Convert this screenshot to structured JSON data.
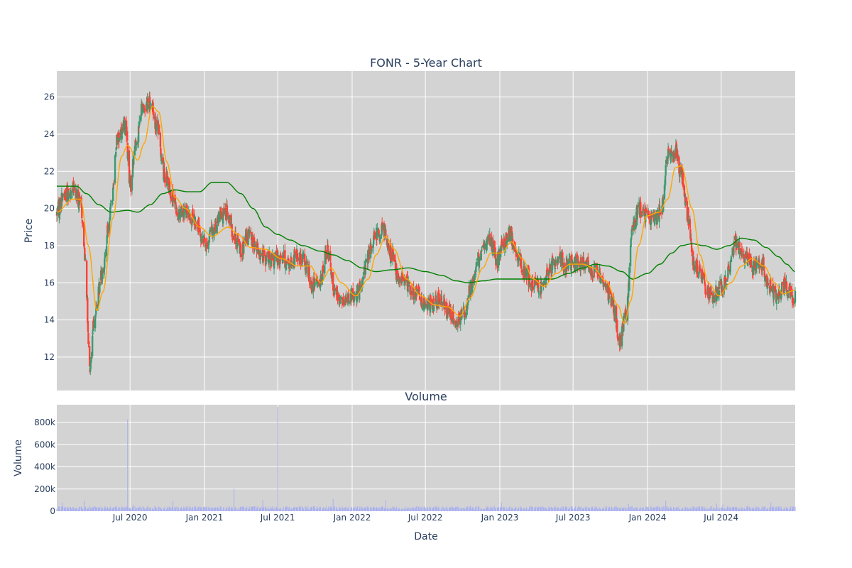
{
  "title": "FONR - 5-Year Chart",
  "colors": {
    "background": "#ffffff",
    "plot_bg": "#d3d3d3",
    "grid": "#ffffff",
    "text": "#2a3f5f",
    "increasing": "#3d9970",
    "decreasing": "#ff4136",
    "ma_short": "#ffa500",
    "ma_long": "#008000",
    "volume": "#aab0f0"
  },
  "chart_data": [
    {
      "type": "candlestick",
      "title": "FONR - 5-Year Chart",
      "ylabel": "Price",
      "xlim": [
        "2020-01-02",
        "2024-12-31"
      ],
      "ylim": [
        10.2,
        27.4
      ],
      "yticks": [
        12,
        14,
        16,
        18,
        20,
        22,
        24,
        26
      ],
      "grid": true,
      "price_path": [
        [
          "2020-01-02",
          19.8
        ],
        [
          "2020-01-20",
          20.8
        ],
        [
          "2020-02-10",
          21.0
        ],
        [
          "2020-03-01",
          20.3
        ],
        [
          "2020-03-12",
          17.5
        ],
        [
          "2020-03-23",
          11.3
        ],
        [
          "2020-04-05",
          14.3
        ],
        [
          "2020-04-25",
          16.8
        ],
        [
          "2020-05-15",
          20.0
        ],
        [
          "2020-05-30",
          23.8
        ],
        [
          "2020-06-20",
          24.5
        ],
        [
          "2020-07-01",
          21.2
        ],
        [
          "2020-07-15",
          23.5
        ],
        [
          "2020-08-01",
          25.4
        ],
        [
          "2020-08-20",
          25.8
        ],
        [
          "2020-09-05",
          24.5
        ],
        [
          "2020-09-25",
          21.8
        ],
        [
          "2020-10-10",
          20.8
        ],
        [
          "2020-10-30",
          19.6
        ],
        [
          "2020-11-20",
          19.8
        ],
        [
          "2020-12-15",
          19.0
        ],
        [
          "2021-01-05",
          18.0
        ],
        [
          "2021-01-20",
          18.8
        ],
        [
          "2021-02-10",
          19.6
        ],
        [
          "2021-02-25",
          19.8
        ],
        [
          "2021-03-15",
          18.4
        ],
        [
          "2021-04-05",
          17.8
        ],
        [
          "2021-04-20",
          18.6
        ],
        [
          "2021-05-10",
          17.8
        ],
        [
          "2021-06-01",
          17.3
        ],
        [
          "2021-06-20",
          17.2
        ],
        [
          "2021-07-10",
          17.4
        ],
        [
          "2021-08-01",
          17.0
        ],
        [
          "2021-08-20",
          17.5
        ],
        [
          "2021-09-10",
          17.0
        ],
        [
          "2021-09-25",
          15.8
        ],
        [
          "2021-10-15",
          16.2
        ],
        [
          "2021-11-01",
          17.8
        ],
        [
          "2021-11-20",
          15.5
        ],
        [
          "2021-12-10",
          15.0
        ],
        [
          "2021-12-30",
          15.3
        ],
        [
          "2022-01-20",
          15.5
        ],
        [
          "2022-02-10",
          17.5
        ],
        [
          "2022-03-01",
          18.6
        ],
        [
          "2022-03-20",
          18.8
        ],
        [
          "2022-04-10",
          17.5
        ],
        [
          "2022-04-25",
          16.2
        ],
        [
          "2022-05-15",
          16.0
        ],
        [
          "2022-06-05",
          15.5
        ],
        [
          "2022-06-25",
          15.0
        ],
        [
          "2022-07-15",
          14.8
        ],
        [
          "2022-08-05",
          15.0
        ],
        [
          "2022-08-25",
          14.5
        ],
        [
          "2022-09-15",
          14.0
        ],
        [
          "2022-10-05",
          14.5
        ],
        [
          "2022-10-25",
          16.0
        ],
        [
          "2022-11-15",
          17.5
        ],
        [
          "2022-12-05",
          18.4
        ],
        [
          "2022-12-25",
          17.2
        ],
        [
          "2023-01-10",
          18.2
        ],
        [
          "2023-01-25",
          18.6
        ],
        [
          "2023-02-15",
          17.5
        ],
        [
          "2023-03-05",
          16.5
        ],
        [
          "2023-03-25",
          15.8
        ],
        [
          "2023-04-15",
          15.8
        ],
        [
          "2023-05-05",
          16.8
        ],
        [
          "2023-05-25",
          17.4
        ],
        [
          "2023-06-15",
          17.0
        ],
        [
          "2023-07-10",
          17.1
        ],
        [
          "2023-08-01",
          17.0
        ],
        [
          "2023-08-25",
          16.6
        ],
        [
          "2023-09-15",
          16.0
        ],
        [
          "2023-10-05",
          15.0
        ],
        [
          "2023-10-25",
          13.0
        ],
        [
          "2023-11-10",
          14.5
        ],
        [
          "2023-11-25",
          19.0
        ],
        [
          "2023-12-10",
          20.0
        ],
        [
          "2023-12-30",
          19.5
        ],
        [
          "2024-01-20",
          19.5
        ],
        [
          "2024-02-05",
          20.0
        ],
        [
          "2024-02-20",
          22.8
        ],
        [
          "2024-03-10",
          23.0
        ],
        [
          "2024-03-25",
          21.8
        ],
        [
          "2024-04-10",
          19.5
        ],
        [
          "2024-04-25",
          17.0
        ],
        [
          "2024-05-10",
          16.5
        ],
        [
          "2024-05-25",
          15.5
        ],
        [
          "2024-06-10",
          15.2
        ],
        [
          "2024-06-30",
          15.8
        ],
        [
          "2024-07-20",
          16.5
        ],
        [
          "2024-08-05",
          18.2
        ],
        [
          "2024-08-25",
          17.5
        ],
        [
          "2024-09-15",
          16.8
        ],
        [
          "2024-10-05",
          17.2
        ],
        [
          "2024-10-25",
          16.0
        ],
        [
          "2024-11-15",
          15.2
        ],
        [
          "2024-12-05",
          15.8
        ],
        [
          "2024-12-31",
          15.2
        ]
      ],
      "ma_short": [
        [
          "2020-01-02",
          19.8
        ],
        [
          "2020-02-10",
          20.5
        ],
        [
          "2020-03-01",
          20.5
        ],
        [
          "2020-03-20",
          18.0
        ],
        [
          "2020-04-10",
          14.5
        ],
        [
          "2020-04-25",
          15.5
        ],
        [
          "2020-05-20",
          19.5
        ],
        [
          "2020-06-10",
          22.8
        ],
        [
          "2020-06-25",
          23.4
        ],
        [
          "2020-07-20",
          22.6
        ],
        [
          "2020-08-05",
          23.5
        ],
        [
          "2020-08-25",
          25.5
        ],
        [
          "2020-09-10",
          25.2
        ],
        [
          "2020-09-30",
          22.5
        ],
        [
          "2020-10-20",
          20.6
        ],
        [
          "2020-11-15",
          20.0
        ],
        [
          "2020-12-20",
          19.0
        ],
        [
          "2021-01-20",
          18.5
        ],
        [
          "2021-03-01",
          19.0
        ],
        [
          "2021-03-25",
          18.6
        ],
        [
          "2021-04-25",
          17.9
        ],
        [
          "2021-06-01",
          17.8
        ],
        [
          "2021-07-10",
          17.3
        ],
        [
          "2021-08-20",
          16.9
        ],
        [
          "2021-09-20",
          16.9
        ],
        [
          "2021-10-15",
          16.0
        ],
        [
          "2021-11-10",
          16.8
        ],
        [
          "2021-12-05",
          16.0
        ],
        [
          "2022-01-10",
          15.3
        ],
        [
          "2022-02-10",
          16.2
        ],
        [
          "2022-03-01",
          17.5
        ],
        [
          "2022-03-25",
          18.5
        ],
        [
          "2022-04-15",
          17.8
        ],
        [
          "2022-05-15",
          16.2
        ],
        [
          "2022-06-20",
          15.3
        ],
        [
          "2022-07-25",
          14.8
        ],
        [
          "2022-08-25",
          14.7
        ],
        [
          "2022-09-25",
          14.2
        ],
        [
          "2022-10-20",
          15.2
        ],
        [
          "2022-11-20",
          16.8
        ],
        [
          "2022-12-10",
          17.6
        ],
        [
          "2023-01-05",
          17.6
        ],
        [
          "2023-01-30",
          18.2
        ],
        [
          "2023-02-25",
          17.3
        ],
        [
          "2023-03-25",
          16.2
        ],
        [
          "2023-04-20",
          15.8
        ],
        [
          "2023-05-20",
          16.5
        ],
        [
          "2023-06-25",
          17.0
        ],
        [
          "2023-07-25",
          17.0
        ],
        [
          "2023-08-20",
          16.8
        ],
        [
          "2023-09-20",
          16.1
        ],
        [
          "2023-10-20",
          14.8
        ],
        [
          "2023-11-05",
          13.8
        ],
        [
          "2023-11-20",
          15.0
        ],
        [
          "2023-12-10",
          18.0
        ],
        [
          "2023-12-30",
          19.6
        ],
        [
          "2024-01-30",
          19.8
        ],
        [
          "2024-02-20",
          20.5
        ],
        [
          "2024-03-10",
          22.2
        ],
        [
          "2024-03-25",
          22.3
        ],
        [
          "2024-04-20",
          20.0
        ],
        [
          "2024-05-10",
          17.5
        ],
        [
          "2024-05-30",
          16.0
        ],
        [
          "2024-06-25",
          15.3
        ],
        [
          "2024-07-25",
          16.0
        ],
        [
          "2024-08-20",
          16.9
        ],
        [
          "2024-09-15",
          17.3
        ],
        [
          "2024-10-15",
          16.9
        ],
        [
          "2024-11-10",
          16.0
        ],
        [
          "2024-12-01",
          15.4
        ],
        [
          "2024-12-31",
          15.6
        ]
      ],
      "ma_long": [
        [
          "2020-01-02",
          21.2
        ],
        [
          "2020-02-20",
          21.2
        ],
        [
          "2020-03-15",
          20.8
        ],
        [
          "2020-04-15",
          20.2
        ],
        [
          "2020-05-15",
          19.8
        ],
        [
          "2020-06-25",
          19.9
        ],
        [
          "2020-07-20",
          19.8
        ],
        [
          "2020-08-20",
          20.2
        ],
        [
          "2020-09-20",
          20.8
        ],
        [
          "2020-10-20",
          21.0
        ],
        [
          "2020-11-20",
          20.9
        ],
        [
          "2020-12-20",
          20.9
        ],
        [
          "2021-01-20",
          21.4
        ],
        [
          "2021-02-25",
          21.4
        ],
        [
          "2021-04-01",
          20.8
        ],
        [
          "2021-05-01",
          20.0
        ],
        [
          "2021-06-01",
          19.0
        ],
        [
          "2021-07-01",
          18.6
        ],
        [
          "2021-08-01",
          18.3
        ],
        [
          "2021-09-01",
          18.0
        ],
        [
          "2021-10-15",
          17.7
        ],
        [
          "2021-11-15",
          17.5
        ],
        [
          "2021-12-20",
          17.2
        ],
        [
          "2022-01-25",
          16.8
        ],
        [
          "2022-03-01",
          16.6
        ],
        [
          "2022-04-10",
          16.7
        ],
        [
          "2022-05-20",
          16.8
        ],
        [
          "2022-07-01",
          16.6
        ],
        [
          "2022-08-10",
          16.4
        ],
        [
          "2022-09-15",
          16.1
        ],
        [
          "2022-10-15",
          16.0
        ],
        [
          "2022-11-20",
          16.1
        ],
        [
          "2022-12-25",
          16.2
        ],
        [
          "2023-02-10",
          16.2
        ],
        [
          "2023-03-25",
          16.2
        ],
        [
          "2023-05-10",
          16.2
        ],
        [
          "2023-06-20",
          16.5
        ],
        [
          "2023-07-25",
          16.8
        ],
        [
          "2023-08-25",
          17.0
        ],
        [
          "2023-09-25",
          16.9
        ],
        [
          "2023-10-30",
          16.6
        ],
        [
          "2023-11-25",
          16.2
        ],
        [
          "2024-01-01",
          16.5
        ],
        [
          "2024-02-01",
          17.0
        ],
        [
          "2024-03-01",
          17.6
        ],
        [
          "2024-03-25",
          18.0
        ],
        [
          "2024-04-20",
          18.1
        ],
        [
          "2024-05-20",
          18.0
        ],
        [
          "2024-06-20",
          17.8
        ],
        [
          "2024-07-20",
          18.0
        ],
        [
          "2024-08-20",
          18.4
        ],
        [
          "2024-09-20",
          18.3
        ],
        [
          "2024-10-20",
          17.9
        ],
        [
          "2024-11-20",
          17.4
        ],
        [
          "2024-12-10",
          17.0
        ],
        [
          "2024-12-31",
          16.6
        ]
      ]
    },
    {
      "type": "bar",
      "title": "Volume",
      "ylabel": "Volume",
      "xlabel": "Date",
      "xlim": [
        "2020-01-02",
        "2024-12-31"
      ],
      "ylim": [
        0,
        960000
      ],
      "yticks": [
        0,
        200000,
        400000,
        600000,
        800000
      ],
      "ytick_labels": [
        "0",
        "200k",
        "400k",
        "600k",
        "800k"
      ],
      "xticks": [
        "2020-07-01",
        "2021-01-01",
        "2021-07-01",
        "2022-01-01",
        "2022-07-01",
        "2023-01-01",
        "2023-07-01",
        "2024-01-01",
        "2024-07-01"
      ],
      "xtick_labels": [
        "Jul 2020",
        "Jan 2021",
        "Jul 2021",
        "Jan 2022",
        "Jul 2022",
        "Jan 2023",
        "Jul 2023",
        "Jan 2024",
        "Jul 2024"
      ],
      "typical_volume": 30000,
      "spikes": [
        [
          "2020-01-15",
          80000
        ],
        [
          "2020-03-10",
          95000
        ],
        [
          "2020-06-25",
          830000
        ],
        [
          "2020-07-10",
          60000
        ],
        [
          "2020-10-15",
          90000
        ],
        [
          "2021-01-10",
          85000
        ],
        [
          "2021-03-15",
          200000
        ],
        [
          "2021-04-25",
          110000
        ],
        [
          "2021-05-25",
          100000
        ],
        [
          "2021-07-01",
          940000
        ],
        [
          "2021-11-15",
          110000
        ],
        [
          "2022-03-25",
          100000
        ],
        [
          "2022-10-20",
          50000
        ],
        [
          "2023-01-05",
          80000
        ],
        [
          "2023-11-15",
          65000
        ],
        [
          "2024-02-15",
          95000
        ],
        [
          "2024-06-20",
          70000
        ],
        [
          "2024-07-05",
          60000
        ],
        [
          "2024-11-01",
          80000
        ]
      ]
    }
  ]
}
